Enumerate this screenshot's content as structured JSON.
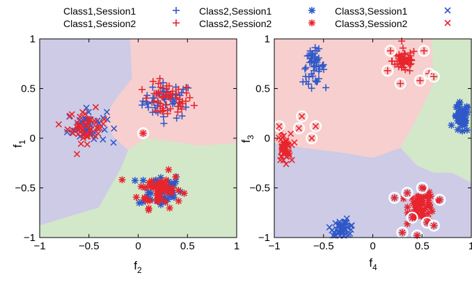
{
  "legend": {
    "entries": [
      {
        "label": "Class1,Session1",
        "class": 1,
        "session": 1,
        "color": "#2f58c8",
        "marker": "plus"
      },
      {
        "label": "Class2,Session1",
        "class": 2,
        "session": 1,
        "color": "#2f58c8",
        "marker": "star"
      },
      {
        "label": "Class3,Session1",
        "class": 3,
        "session": 1,
        "color": "#2f58c8",
        "marker": "cross"
      },
      {
        "label": "Class1,Session2",
        "class": 1,
        "session": 2,
        "color": "#e8242c",
        "marker": "plus"
      },
      {
        "label": "Class2,Session2",
        "class": 2,
        "session": 2,
        "color": "#e8242c",
        "marker": "star"
      },
      {
        "label": "Class3,Session2",
        "class": 3,
        "session": 2,
        "color": "#e8242c",
        "marker": "cross"
      }
    ]
  },
  "colors": {
    "session1": "#2f58c8",
    "session2": "#e8242c",
    "region_class1": "#f7cfcf",
    "region_class2": "#d2e8c9",
    "region_class3": "#cdcbe6",
    "highlight_ring": "#ffffff"
  },
  "chart_data": [
    {
      "type": "scatter",
      "title": "",
      "xlabel": "f",
      "xlabel_sub": "2",
      "ylabel": "f",
      "ylabel_sub": "1",
      "xlim": [
        -1,
        1
      ],
      "ylim": [
        -1,
        1
      ],
      "xticks": [
        -1,
        -0.5,
        0,
        0.5,
        1
      ],
      "yticks": [
        -1,
        -0.5,
        0,
        0.5,
        1
      ],
      "xtick_labels": [
        "−1",
        "−0.5",
        "0",
        "0.5",
        "1"
      ],
      "ytick_labels": [
        "−1",
        "−0.5",
        "0",
        "0.5",
        "1"
      ],
      "grid": false,
      "regions": [
        {
          "class": 3,
          "polygon": [
            [
              -1,
              1
            ],
            [
              -0.08,
              1
            ],
            [
              -0.06,
              0.6
            ],
            [
              -0.22,
              0.4
            ],
            [
              -0.35,
              0.2
            ],
            [
              -0.25,
              0.02
            ],
            [
              -0.1,
              -0.12
            ],
            [
              -0.17,
              -0.3
            ],
            [
              -0.4,
              -0.7
            ],
            [
              -1,
              -0.88
            ]
          ]
        },
        {
          "class": 1,
          "polygon": [
            [
              -0.08,
              1
            ],
            [
              1,
              1
            ],
            [
              1,
              -0.05
            ],
            [
              0.6,
              -0.08
            ],
            [
              0.45,
              -0.05
            ],
            [
              0.22,
              -0.02
            ],
            [
              0.08,
              0
            ],
            [
              -0.1,
              -0.12
            ],
            [
              -0.25,
              0.02
            ],
            [
              -0.35,
              0.2
            ],
            [
              -0.22,
              0.4
            ],
            [
              -0.06,
              0.6
            ]
          ]
        },
        {
          "class": 2,
          "polygon": [
            [
              -0.1,
              -0.12
            ],
            [
              0.08,
              0
            ],
            [
              0.22,
              -0.02
            ],
            [
              0.45,
              -0.05
            ],
            [
              0.6,
              -0.08
            ],
            [
              1,
              -0.05
            ],
            [
              1,
              -1
            ],
            [
              -1,
              -1
            ],
            [
              -1,
              -0.88
            ],
            [
              -0.4,
              -0.7
            ],
            [
              -0.17,
              -0.3
            ]
          ]
        }
      ],
      "clusters": [
        {
          "class": 1,
          "center": [
            0.3,
            0.38
          ],
          "spread": [
            0.23,
            0.16
          ],
          "n_session1": 50,
          "n_session2": 50
        },
        {
          "class": 2,
          "center": [
            0.22,
            -0.52
          ],
          "spread": [
            0.2,
            0.16
          ],
          "n_session1": 45,
          "n_session2": 50
        },
        {
          "class": 3,
          "center": [
            -0.52,
            0.12
          ],
          "spread": [
            0.18,
            0.15
          ],
          "n_session1": 45,
          "n_session2": 45
        }
      ],
      "highlighted_points": [
        {
          "class": 2,
          "session": 2,
          "x": 0.05,
          "y": 0.05
        }
      ]
    },
    {
      "type": "scatter",
      "title": "",
      "xlabel": "f",
      "xlabel_sub": "4",
      "ylabel": "f",
      "ylabel_sub": "3",
      "xlim": [
        -1,
        1
      ],
      "ylim": [
        -1,
        1
      ],
      "xticks": [
        -1,
        -0.5,
        0,
        0.5,
        1
      ],
      "yticks": [
        -1,
        -0.5,
        0,
        0.5,
        1
      ],
      "xtick_labels": [
        "−1",
        "−0.5",
        "0",
        "0.5",
        "1"
      ],
      "ytick_labels": [
        "−1",
        "−0.5",
        "0",
        "0.5",
        "1"
      ],
      "grid": false,
      "regions": [
        {
          "class": 1,
          "polygon": [
            [
              -1,
              1
            ],
            [
              0.6,
              1
            ],
            [
              0.62,
              0.55
            ],
            [
              0.45,
              0.2
            ],
            [
              0.28,
              -0.1
            ],
            [
              0,
              -0.2
            ],
            [
              -0.3,
              -0.15
            ],
            [
              -0.7,
              -0.1
            ],
            [
              -1,
              -0.05
            ]
          ]
        },
        {
          "class": 2,
          "polygon": [
            [
              0.6,
              1
            ],
            [
              1,
              1
            ],
            [
              1,
              -0.45
            ],
            [
              0.8,
              -0.35
            ],
            [
              0.62,
              -0.35
            ],
            [
              0.45,
              -0.28
            ],
            [
              0.28,
              -0.1
            ],
            [
              0.45,
              0.2
            ],
            [
              0.62,
              0.55
            ]
          ]
        },
        {
          "class": 3,
          "polygon": [
            [
              -1,
              -0.05
            ],
            [
              -0.7,
              -0.1
            ],
            [
              -0.3,
              -0.15
            ],
            [
              0,
              -0.2
            ],
            [
              0.28,
              -0.1
            ],
            [
              0.45,
              -0.28
            ],
            [
              0.62,
              -0.35
            ],
            [
              0.8,
              -0.35
            ],
            [
              1,
              -0.45
            ],
            [
              1,
              -1
            ],
            [
              -1,
              -1
            ]
          ]
        }
      ],
      "clusters": [
        {
          "class": 1,
          "center": [
            -0.6,
            0.72
          ],
          "spread": [
            0.1,
            0.15
          ],
          "n_session1": 50,
          "n_session2": 0
        },
        {
          "class": 1,
          "center": [
            0.32,
            0.78
          ],
          "spread": [
            0.11,
            0.11
          ],
          "n_session1": 0,
          "n_session2": 50
        },
        {
          "class": 2,
          "center": [
            0.9,
            0.2
          ],
          "spread": [
            0.07,
            0.14
          ],
          "n_session1": 45,
          "n_session2": 0
        },
        {
          "class": 2,
          "center": [
            0.5,
            -0.68
          ],
          "spread": [
            0.12,
            0.13
          ],
          "n_session1": 0,
          "n_session2": 55
        },
        {
          "class": 3,
          "center": [
            -0.3,
            -0.9
          ],
          "spread": [
            0.11,
            0.07
          ],
          "n_session1": 45,
          "n_session2": 0
        },
        {
          "class": 3,
          "center": [
            -0.9,
            -0.1
          ],
          "spread": [
            0.06,
            0.13
          ],
          "n_session1": 0,
          "n_session2": 45
        }
      ],
      "highlighted_points": [
        {
          "class": 1,
          "session": 2,
          "x": 0.15,
          "y": 0.68
        },
        {
          "class": 1,
          "session": 2,
          "x": 0.52,
          "y": 0.88
        },
        {
          "class": 1,
          "session": 2,
          "x": 0.57,
          "y": 0.65
        },
        {
          "class": 1,
          "session": 2,
          "x": 0.28,
          "y": 0.55
        },
        {
          "class": 1,
          "session": 2,
          "x": 0.48,
          "y": 0.58
        },
        {
          "class": 1,
          "session": 2,
          "x": 0.18,
          "y": 0.88
        },
        {
          "class": 1,
          "session": 2,
          "x": 0.62,
          "y": 0.62
        },
        {
          "class": 3,
          "session": 2,
          "x": -0.75,
          "y": 0.1
        },
        {
          "class": 3,
          "session": 2,
          "x": -0.62,
          "y": 0.0
        },
        {
          "class": 3,
          "session": 2,
          "x": -0.58,
          "y": 0.12
        },
        {
          "class": 3,
          "session": 2,
          "x": -0.72,
          "y": 0.22
        },
        {
          "class": 3,
          "session": 2,
          "x": -0.95,
          "y": 0.12
        },
        {
          "class": 2,
          "session": 2,
          "x": 0.22,
          "y": -0.6
        },
        {
          "class": 2,
          "session": 2,
          "x": 0.35,
          "y": -0.55
        },
        {
          "class": 2,
          "session": 2,
          "x": 0.4,
          "y": -0.8
        },
        {
          "class": 2,
          "session": 2,
          "x": 0.55,
          "y": -0.85
        },
        {
          "class": 2,
          "session": 2,
          "x": 0.62,
          "y": -0.88
        },
        {
          "class": 2,
          "session": 2,
          "x": 0.45,
          "y": -0.98
        },
        {
          "class": 2,
          "session": 2,
          "x": 0.3,
          "y": -0.95
        },
        {
          "class": 2,
          "session": 2,
          "x": 0.68,
          "y": -0.62
        },
        {
          "class": 2,
          "session": 2,
          "x": 0.5,
          "y": -0.5
        }
      ]
    }
  ]
}
